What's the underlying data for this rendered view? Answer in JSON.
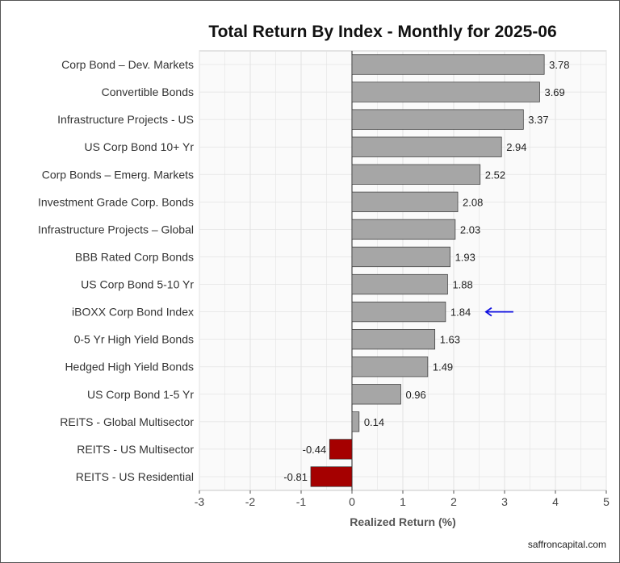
{
  "chart_data": {
    "type": "bar",
    "orientation": "horizontal",
    "title": "Total Return By Index - Monthly for 2025-06",
    "xlabel": "Realized Return (%)",
    "ylabel": "",
    "xlim": [
      -3,
      5
    ],
    "xticks": [
      "-3",
      "-2",
      "-1",
      "0",
      "1",
      "2",
      "3",
      "4",
      "5"
    ],
    "grid": true,
    "categories": [
      "Corp Bond – Dev. Markets",
      "Convertible Bonds",
      "Infrastructure Projects - US",
      "US Corp Bond 10+ Yr",
      "Corp Bonds – Emerg. Markets",
      "Investment Grade Corp. Bonds",
      "Infrastructure Projects – Global",
      "BBB Rated Corp Bonds",
      "US Corp Bond 5-10 Yr",
      "iBOXX Corp Bond Index",
      "0-5 Yr High Yield Bonds",
      "Hedged High Yield Bonds",
      "US Corp Bond 1-5 Yr",
      "REITS - Global Multisector",
      "REITS - US Multisector",
      "REITS - US Residential"
    ],
    "values": [
      3.78,
      3.69,
      3.37,
      2.94,
      2.52,
      2.08,
      2.03,
      1.93,
      1.88,
      1.84,
      1.63,
      1.49,
      0.96,
      0.14,
      -0.44,
      -0.81
    ],
    "value_labels": [
      "3.78",
      "3.69",
      "3.37",
      "2.94",
      "2.52",
      "2.08",
      "2.03",
      "1.93",
      "1.88",
      "1.84",
      "1.63",
      "1.49",
      "0.96",
      "0.14",
      "-0.44",
      "-0.81"
    ],
    "highlighted_category": "iBOXX Corp Bond Index",
    "annotation": "arrow pointing left at highlighted bar",
    "colors": {
      "positive_bar": "#a6a6a6",
      "negative_bar": "#a50000",
      "bar_edge": "#333333",
      "highlight_label": "#1010e0",
      "arrow": "#1010e0",
      "grid": "#e3e3e3",
      "zero_line": "#222222",
      "plot_background": "#fafafa"
    }
  },
  "source": "saffroncapital.com"
}
